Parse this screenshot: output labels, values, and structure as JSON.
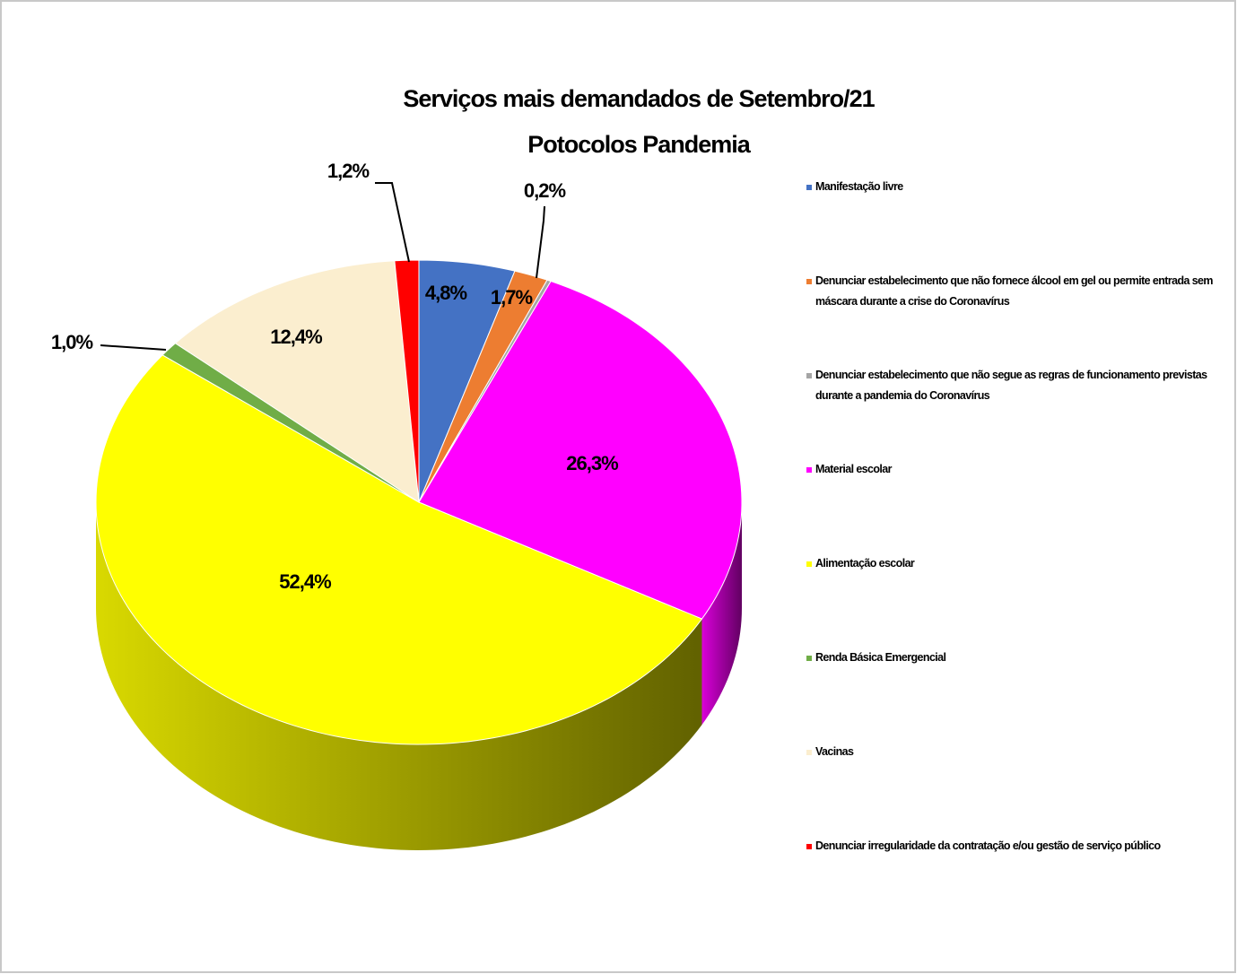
{
  "chart_data": {
    "type": "pie",
    "title": "Serviços mais demandados de  Setembro/21",
    "subtitle": "Potocolos Pandemia",
    "categories": [
      "Manifestação livre",
      "Denunciar estabelecimento que não fornece álcool em gel ou permite entrada sem máscara durante a crise do Coronavírus",
      "Denunciar estabelecimento que não segue as regras de funcionamento previstas durante a pandemia do Coronavírus",
      "Material escolar",
      "Alimentação escolar",
      "Renda Básica Emergencial",
      "Vacinas",
      "Denunciar irregularidade da contratação e/ou gestão de serviço público"
    ],
    "values": [
      4.8,
      1.7,
      0.2,
      26.3,
      52.4,
      1.0,
      12.4,
      1.2
    ],
    "value_labels": [
      "4,8%",
      "1,7%",
      "0,2%",
      "26,3%",
      "52,4%",
      "1,0%",
      "12,4%",
      "1,2%"
    ],
    "colors": [
      "#4472c4",
      "#ed7d31",
      "#a5a5a5",
      "#ff00ff",
      "#ffff00",
      "#70ad47",
      "#fbeecf",
      "#ff0000"
    ],
    "legend": "right"
  }
}
